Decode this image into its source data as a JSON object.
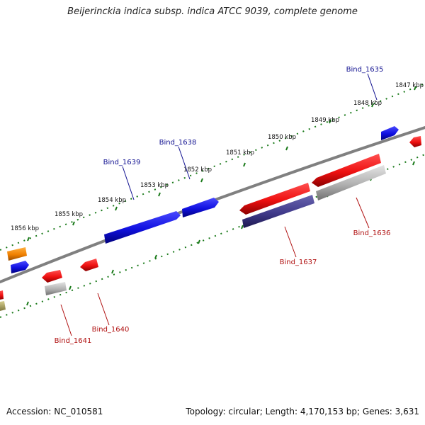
{
  "title": "Beijerinckia indica subsp. indica ATCC 9039, complete genome",
  "footer": {
    "accession": "Accession: NC_010581",
    "summary": "Topology: circular; Length: 4,170,153 bp; Genes: 3,631"
  },
  "colors": {
    "forward": "#1515e0",
    "reverse": "#e81010",
    "backbone": "#808080",
    "tick": "#1a7a1a",
    "forward_label": "#101090",
    "reverse_label": "#b01010",
    "pseudo": "#9a9a9a",
    "other": "#f08000",
    "dark": "#3a3580",
    "olive": "#a8a060"
  },
  "scale_labels": [
    "1847 kbp",
    "1848 kbp",
    "1849 kbp",
    "1850 kbp",
    "1851 kbp",
    "1852 kbp",
    "1853 kbp",
    "1854 kbp",
    "1855 kbp",
    "1856 kbp"
  ],
  "gene_labels": [
    {
      "text": "Bind_1635",
      "strand": "forward"
    },
    {
      "text": "Bind_1638",
      "strand": "forward"
    },
    {
      "text": "Bind_1639",
      "strand": "forward"
    },
    {
      "text": "Bind_1636",
      "strand": "reverse"
    },
    {
      "text": "Bind_1637",
      "strand": "reverse"
    },
    {
      "text": "Bind_1640",
      "strand": "reverse"
    },
    {
      "text": "Bind_1641",
      "strand": "reverse"
    }
  ]
}
